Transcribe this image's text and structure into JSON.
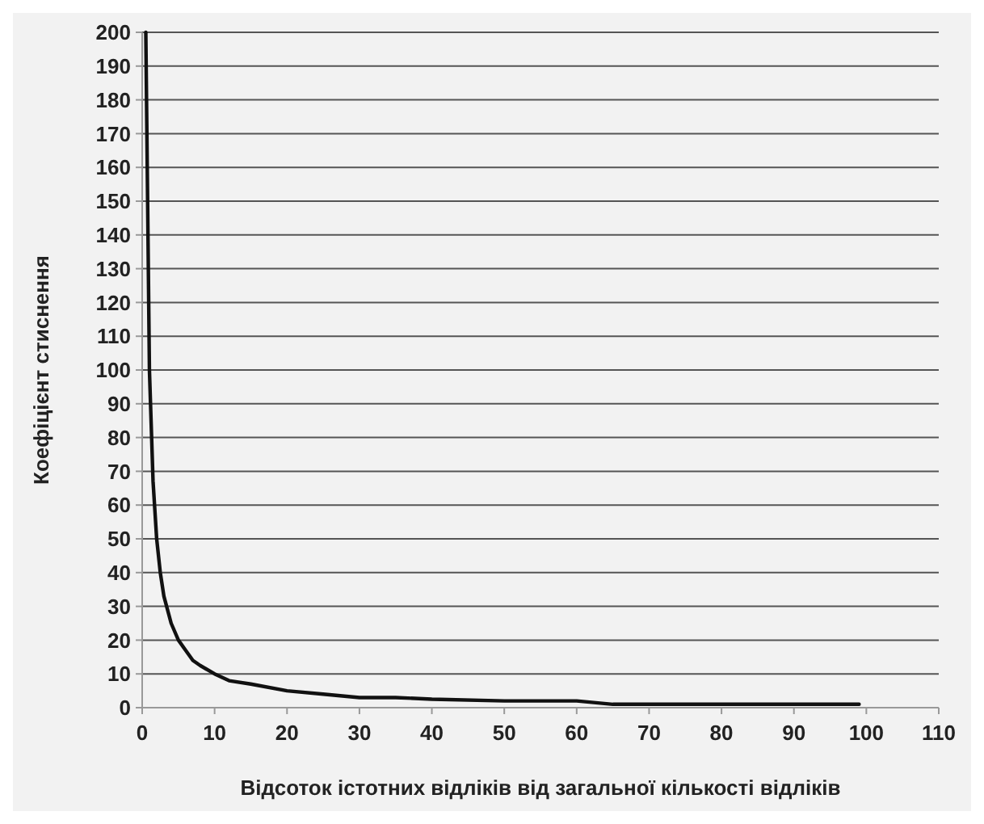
{
  "chart_data": {
    "type": "line",
    "xlabel": "Відсоток істотних відліків від загальної кількості відліків",
    "ylabel": "Коефіцієнт стиснення",
    "x": [
      0.5,
      1,
      1.5,
      2,
      2.5,
      3,
      4,
      5,
      6,
      7,
      8,
      10,
      12,
      15,
      20,
      25,
      30,
      35,
      40,
      50,
      60,
      65,
      70,
      80,
      90,
      99
    ],
    "series": [
      {
        "color": "#111111",
        "values": [
          200,
          100,
          67,
          50,
          40,
          33,
          25,
          20,
          17,
          14,
          12.5,
          10,
          8,
          7,
          5,
          4,
          3,
          3,
          2.5,
          2,
          2,
          1,
          1,
          1,
          1,
          1
        ]
      }
    ],
    "xlim": [
      0,
      110
    ],
    "xticks": [
      0,
      10,
      20,
      30,
      40,
      50,
      60,
      70,
      80,
      90,
      100,
      110
    ],
    "ylim": [
      0,
      200
    ],
    "yticks": [
      0,
      10,
      20,
      30,
      40,
      50,
      60,
      70,
      80,
      90,
      100,
      110,
      120,
      130,
      140,
      150,
      160,
      170,
      180,
      190,
      200
    ],
    "grid": "y",
    "marker": "none",
    "line_style": "solid"
  }
}
